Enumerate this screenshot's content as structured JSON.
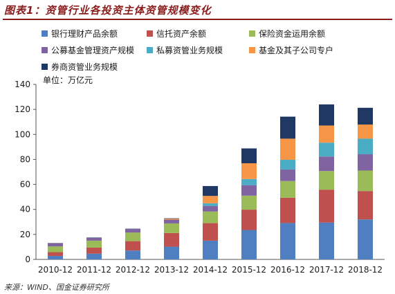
{
  "figure": {
    "title": "图表1：资管行业各投资主体资管规模变化",
    "source": "来源：WIND、国金证券研究所",
    "unit": "单位：万亿元"
  },
  "colors": {
    "title": "#8a1c1c"
  },
  "chart_data": {
    "type": "bar",
    "stacked": true,
    "categories": [
      "2010-12",
      "2011-12",
      "2012-12",
      "2013-12",
      "2014-12",
      "2015-12",
      "2016-12",
      "2017-12",
      "2018-12"
    ],
    "ylim": [
      0,
      140
    ],
    "yticks": [
      0,
      20,
      40,
      60,
      80,
      100,
      120,
      140
    ],
    "xlabel": "",
    "ylabel": "",
    "grid": false,
    "legend_position": "top",
    "series": [
      {
        "name": "银行理财产品余额",
        "color": "#4f7fc0",
        "values": [
          2.8,
          4.6,
          7.1,
          10.2,
          15.0,
          23.5,
          29.1,
          29.5,
          32.0
        ]
      },
      {
        "name": "信托资产余额",
        "color": "#c0504d",
        "values": [
          3.0,
          4.8,
          7.5,
          10.9,
          14.0,
          16.3,
          20.2,
          26.3,
          22.7
        ]
      },
      {
        "name": "保险资金运用余额",
        "color": "#9bbb59",
        "values": [
          4.6,
          5.6,
          6.9,
          7.7,
          9.3,
          11.2,
          13.4,
          14.9,
          16.4
        ]
      },
      {
        "name": "公募基金管理资产规模",
        "color": "#8064a2",
        "values": [
          2.5,
          2.2,
          2.9,
          3.0,
          4.5,
          8.4,
          9.2,
          11.6,
          13.0
        ]
      },
      {
        "name": "私募资管业务规模",
        "color": "#4bacc6",
        "values": [
          0,
          0,
          0,
          0,
          2.1,
          4.9,
          7.8,
          11.1,
          12.5
        ]
      },
      {
        "name": "基金及其子公司专户",
        "color": "#f79646",
        "values": [
          0,
          0,
          0,
          0.8,
          5.9,
          12.6,
          16.9,
          13.7,
          11.3
        ]
      },
      {
        "name": "券商资管业务规模",
        "color": "#1f3864",
        "values": [
          0.2,
          0.3,
          0.2,
          0.3,
          7.9,
          11.9,
          17.6,
          16.9,
          13.4
        ]
      }
    ]
  }
}
